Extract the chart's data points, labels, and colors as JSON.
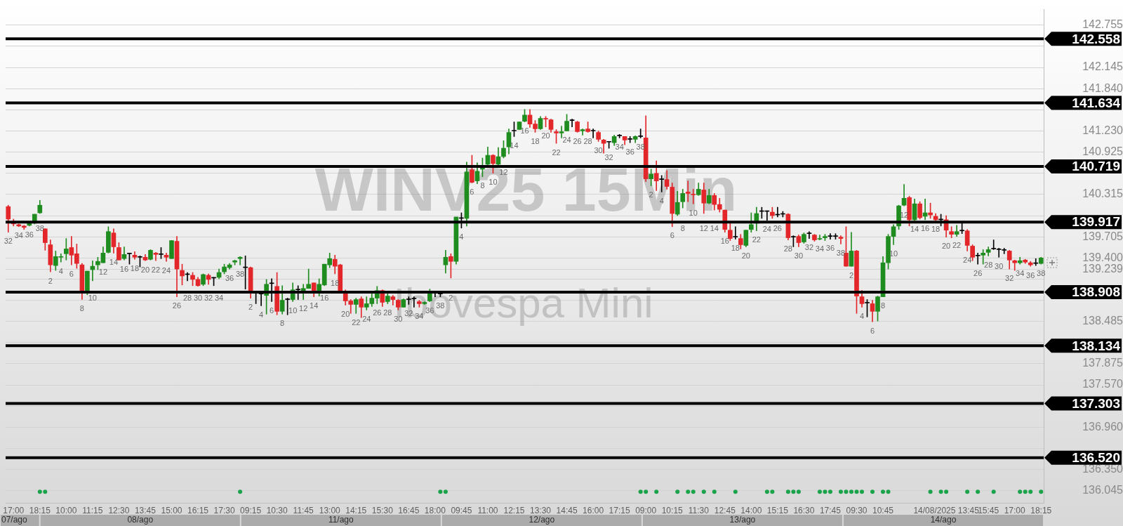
{
  "chart_data": {
    "type": "candlestick",
    "title": "WINV25 15Min",
    "subtitle": "Ibovespa Mini",
    "categories": [
      null,
      "17:00",
      null,
      null,
      null,
      null,
      "18:15",
      null,
      null,
      null,
      null,
      "10:00",
      null,
      null,
      null,
      null,
      "11:15",
      null,
      null,
      null,
      null,
      "12:30",
      null,
      null,
      null,
      null,
      "13:45",
      null,
      null,
      null,
      null,
      "15:00",
      null,
      null,
      null,
      null,
      "16:15",
      null,
      null,
      null,
      null,
      "17:30",
      null,
      null,
      null,
      null,
      "09:15",
      null,
      null,
      null,
      null,
      "10:30",
      null,
      null,
      null,
      null,
      "11:45",
      null,
      null,
      null,
      null,
      "13:00",
      null,
      null,
      null,
      null,
      "14:15",
      null,
      null,
      null,
      null,
      "15:30",
      null,
      null,
      null,
      null,
      "16:45",
      null,
      null,
      null,
      null,
      "18:00",
      null,
      null,
      null,
      null,
      "09:45",
      null,
      null,
      null,
      null,
      "11:00",
      null,
      null,
      null,
      null,
      "12:15",
      null,
      null,
      null,
      null,
      "13:30",
      null,
      null,
      null,
      null,
      "14:45",
      null,
      null,
      null,
      null,
      "16:00",
      null,
      null,
      null,
      null,
      "17:15",
      null,
      null,
      null,
      null,
      "09:00",
      null,
      null,
      null,
      null,
      "10:15",
      null,
      null,
      null,
      null,
      "11:30",
      null,
      null,
      null,
      null,
      "12:45",
      null,
      null,
      null,
      null,
      "14:00",
      null,
      null,
      null,
      null,
      "15:15",
      null,
      null,
      null,
      null,
      "16:30",
      null,
      null,
      null,
      null,
      "17:45",
      null,
      null,
      null,
      null,
      "09:30",
      null,
      null,
      null,
      null,
      "10:45",
      null,
      null,
      null,
      null,
      null,
      null,
      null,
      null,
      null,
      null,
      null,
      "14/08/2025 13:45",
      null,
      null,
      null,
      null,
      null,
      null,
      null,
      "15:45",
      null,
      null,
      null,
      null,
      "17:00",
      null,
      null,
      null,
      null,
      "18:15"
    ],
    "ohlc": [
      [
        140.14,
        140.16,
        139.77,
        139.96
      ],
      [
        139.91,
        139.96,
        139.86,
        139.89
      ],
      [
        139.88,
        139.89,
        139.85,
        139.86
      ],
      [
        139.86,
        139.87,
        139.81,
        139.84
      ],
      [
        139.87,
        139.91,
        139.86,
        139.9
      ],
      [
        139.9,
        140.03,
        139.89,
        140.03
      ],
      [
        140.05,
        140.23,
        140.04,
        140.16
      ],
      [
        139.82,
        139.82,
        139.51,
        139.62
      ],
      [
        139.59,
        139.66,
        139.2,
        139.3
      ],
      [
        139.29,
        139.5,
        139.22,
        139.42
      ],
      [
        139.41,
        139.46,
        139.34,
        139.42
      ],
      [
        139.46,
        139.68,
        139.37,
        139.53
      ],
      [
        139.55,
        139.71,
        139.3,
        139.44
      ],
      [
        139.46,
        139.6,
        139.25,
        139.32
      ],
      [
        139.3,
        139.32,
        138.8,
        138.9
      ],
      [
        138.91,
        139.21,
        138.87,
        139.21
      ],
      [
        139.23,
        139.36,
        139.07,
        139.28
      ],
      [
        139.3,
        139.41,
        139.23,
        139.35
      ],
      [
        139.33,
        139.56,
        139.33,
        139.47
      ],
      [
        139.48,
        139.85,
        139.47,
        139.78
      ],
      [
        139.76,
        139.82,
        139.47,
        139.56
      ],
      [
        139.55,
        139.62,
        139.37,
        139.37
      ],
      [
        139.39,
        139.56,
        139.37,
        139.45
      ],
      [
        139.46,
        139.47,
        139.31,
        139.46
      ],
      [
        139.44,
        139.49,
        139.38,
        139.41
      ],
      [
        139.41,
        139.43,
        139.27,
        139.41
      ],
      [
        139.41,
        139.45,
        139.36,
        139.37
      ],
      [
        139.38,
        139.52,
        139.37,
        139.51
      ],
      [
        139.47,
        139.48,
        139.36,
        139.45
      ],
      [
        139.45,
        139.55,
        139.39,
        139.45
      ],
      [
        139.44,
        139.47,
        139.35,
        139.41
      ],
      [
        139.39,
        139.65,
        139.39,
        139.65
      ],
      [
        139.64,
        139.71,
        138.84,
        139.24
      ],
      [
        139.22,
        139.31,
        139.01,
        139.14
      ],
      [
        139.16,
        139.19,
        139.07,
        139.16
      ],
      [
        139.15,
        139.19,
        139.0,
        139.09
      ],
      [
        139.09,
        139.12,
        138.99,
        139.0
      ],
      [
        139.02,
        139.17,
        139.0,
        139.16
      ],
      [
        139.15,
        139.17,
        139.02,
        139.09
      ],
      [
        139.11,
        139.12,
        139.0,
        139.11
      ],
      [
        139.12,
        139.24,
        139.1,
        139.19
      ],
      [
        139.2,
        139.31,
        139.17,
        139.27
      ],
      [
        139.26,
        139.32,
        139.24,
        139.3
      ],
      [
        139.34,
        139.37,
        139.3,
        139.36
      ],
      [
        139.39,
        139.42,
        139.3,
        139.41
      ],
      [
        139.26,
        139.43,
        138.95,
        139.26
      ],
      [
        139.26,
        139.27,
        138.82,
        138.91
      ],
      [
        138.89,
        138.9,
        138.74,
        138.89
      ],
      [
        138.88,
        138.89,
        138.71,
        138.88
      ],
      [
        138.86,
        139.09,
        138.59,
        139.02
      ],
      [
        139.03,
        139.1,
        138.77,
        139.03
      ],
      [
        138.99,
        139.19,
        138.58,
        138.63
      ],
      [
        138.63,
        139.0,
        138.59,
        138.79
      ],
      [
        138.8,
        138.82,
        138.58,
        138.8
      ],
      [
        138.8,
        139.04,
        138.77,
        138.94
      ],
      [
        138.94,
        139.0,
        138.8,
        138.94
      ],
      [
        138.9,
        139.02,
        138.8,
        138.96
      ],
      [
        138.96,
        139.24,
        138.96,
        139.02
      ],
      [
        139.04,
        139.04,
        138.84,
        138.92
      ],
      [
        138.92,
        139.1,
        138.85,
        139.02
      ],
      [
        139.01,
        139.31,
        139.0,
        139.31
      ],
      [
        139.3,
        139.47,
        139.26,
        139.39
      ],
      [
        139.38,
        139.44,
        139.17,
        139.28
      ],
      [
        139.3,
        139.31,
        138.92,
        138.92
      ],
      [
        138.9,
        138.94,
        138.72,
        138.78
      ],
      [
        138.78,
        138.8,
        138.6,
        138.73
      ],
      [
        138.73,
        138.82,
        138.6,
        138.8
      ],
      [
        138.81,
        138.84,
        138.54,
        138.69
      ],
      [
        138.69,
        138.84,
        138.65,
        138.74
      ],
      [
        138.74,
        138.91,
        138.7,
        138.82
      ],
      [
        138.82,
        138.99,
        138.74,
        138.93
      ],
      [
        138.93,
        138.94,
        138.7,
        138.76
      ],
      [
        138.77,
        138.9,
        138.74,
        138.85
      ],
      [
        138.84,
        138.86,
        138.72,
        138.8
      ],
      [
        138.79,
        138.8,
        138.65,
        138.69
      ],
      [
        138.69,
        138.81,
        138.69,
        138.8
      ],
      [
        138.8,
        138.84,
        138.73,
        138.8
      ],
      [
        138.81,
        138.84,
        138.69,
        138.81
      ],
      [
        138.77,
        138.79,
        138.69,
        138.74
      ],
      [
        138.74,
        138.77,
        138.73,
        138.76
      ],
      [
        138.78,
        138.95,
        138.77,
        138.89
      ],
      [
        138.89,
        138.9,
        138.84,
        138.89
      ],
      [
        138.88,
        138.89,
        138.84,
        138.88
      ],
      [
        139.3,
        139.51,
        139.18,
        139.41
      ],
      [
        139.42,
        139.46,
        139.11,
        139.35
      ],
      [
        139.35,
        139.99,
        139.31,
        139.99
      ],
      [
        139.97,
        140.05,
        139.83,
        139.97
      ],
      [
        139.97,
        140.78,
        139.86,
        140.64
      ],
      [
        140.67,
        140.88,
        140.48,
        140.49
      ],
      [
        140.51,
        140.77,
        140.47,
        140.65
      ],
      [
        140.68,
        140.84,
        140.57,
        140.71
      ],
      [
        140.75,
        141.0,
        140.74,
        140.88
      ],
      [
        140.88,
        140.89,
        140.62,
        140.76
      ],
      [
        140.75,
        140.99,
        140.74,
        140.86
      ],
      [
        140.86,
        141.09,
        140.84,
        140.98
      ],
      [
        141.0,
        141.26,
        140.9,
        141.21
      ],
      [
        141.23,
        141.36,
        141.15,
        141.23
      ],
      [
        141.25,
        141.36,
        141.25,
        141.36
      ],
      [
        141.37,
        141.54,
        141.36,
        141.46
      ],
      [
        141.46,
        141.54,
        141.28,
        141.33
      ],
      [
        141.33,
        141.38,
        141.21,
        141.26
      ],
      [
        141.26,
        141.44,
        141.25,
        141.41
      ],
      [
        141.41,
        141.44,
        141.29,
        141.4
      ],
      [
        141.39,
        141.4,
        141.21,
        141.25
      ],
      [
        141.22,
        141.25,
        141.05,
        141.2
      ],
      [
        141.2,
        141.3,
        141.13,
        141.22
      ],
      [
        141.23,
        141.47,
        141.23,
        141.37
      ],
      [
        141.38,
        141.4,
        141.29,
        141.38
      ],
      [
        141.36,
        141.37,
        141.21,
        141.22
      ],
      [
        141.23,
        141.26,
        141.17,
        141.25
      ],
      [
        141.26,
        141.36,
        141.21,
        141.22
      ],
      [
        141.23,
        141.26,
        141.13,
        141.23
      ],
      [
        141.21,
        141.23,
        141.08,
        141.11
      ],
      [
        141.1,
        141.11,
        140.91,
        141.05
      ],
      [
        141.07,
        141.08,
        140.98,
        141.07
      ],
      [
        141.06,
        141.17,
        141.02,
        141.15
      ],
      [
        141.16,
        141.18,
        141.13,
        141.16
      ],
      [
        141.15,
        141.15,
        141.03,
        141.1
      ],
      [
        141.11,
        141.15,
        141.06,
        141.11
      ],
      [
        141.11,
        141.16,
        141.06,
        141.15
      ],
      [
        141.15,
        141.26,
        141.13,
        141.15
      ],
      [
        141.13,
        141.45,
        140.5,
        140.54
      ],
      [
        140.54,
        140.68,
        140.44,
        140.61
      ],
      [
        140.62,
        140.8,
        140.37,
        140.51
      ],
      [
        140.53,
        140.59,
        140.35,
        140.53
      ],
      [
        140.53,
        140.66,
        140.39,
        140.43
      ],
      [
        140.42,
        140.48,
        139.85,
        140.04
      ],
      [
        140.03,
        140.36,
        140.01,
        140.2
      ],
      [
        140.21,
        140.39,
        140.12,
        140.33
      ],
      [
        140.35,
        140.51,
        140.21,
        140.33
      ],
      [
        140.32,
        140.39,
        140.18,
        140.31
      ],
      [
        140.31,
        140.48,
        140.3,
        140.39
      ],
      [
        140.38,
        140.48,
        140.04,
        140.19
      ],
      [
        140.19,
        140.39,
        140.18,
        140.3
      ],
      [
        140.3,
        140.33,
        140.09,
        140.17
      ],
      [
        140.17,
        140.26,
        140.06,
        140.1
      ],
      [
        140.09,
        140.09,
        139.77,
        139.81
      ],
      [
        139.8,
        139.9,
        139.65,
        139.68
      ],
      [
        139.7,
        139.85,
        139.67,
        139.7
      ],
      [
        139.68,
        139.74,
        139.53,
        139.59
      ],
      [
        139.58,
        139.8,
        139.56,
        139.8
      ],
      [
        139.81,
        140.05,
        139.77,
        139.88
      ],
      [
        139.9,
        140.13,
        139.79,
        140.04
      ],
      [
        140.07,
        140.13,
        139.97,
        140.07
      ],
      [
        140.07,
        140.08,
        139.94,
        140.07
      ],
      [
        140.06,
        140.13,
        139.97,
        140.01
      ],
      [
        140.02,
        140.13,
        139.99,
        140.02
      ],
      [
        140.03,
        140.07,
        139.99,
        140.03
      ],
      [
        140.03,
        140.04,
        139.66,
        139.69
      ],
      [
        139.7,
        139.72,
        139.56,
        139.7
      ],
      [
        139.71,
        139.73,
        139.56,
        139.62
      ],
      [
        139.63,
        139.76,
        139.61,
        139.74
      ],
      [
        139.75,
        139.78,
        139.68,
        139.75
      ],
      [
        139.73,
        139.74,
        139.64,
        139.66
      ],
      [
        139.67,
        139.73,
        139.66,
        139.68
      ],
      [
        139.69,
        139.74,
        139.65,
        139.71
      ],
      [
        139.71,
        139.75,
        139.67,
        139.71
      ],
      [
        139.71,
        139.75,
        139.67,
        139.71
      ],
      [
        139.7,
        139.72,
        139.6,
        139.68
      ],
      [
        139.47,
        139.85,
        139.28,
        139.28
      ],
      [
        139.28,
        139.77,
        139.28,
        139.5
      ],
      [
        139.5,
        139.51,
        138.6,
        138.85
      ],
      [
        138.84,
        138.93,
        138.69,
        138.74
      ],
      [
        138.75,
        138.8,
        138.55,
        138.75
      ],
      [
        138.74,
        138.79,
        138.48,
        138.63
      ],
      [
        138.63,
        138.85,
        138.49,
        138.84
      ],
      [
        138.84,
        139.42,
        138.84,
        139.33
      ],
      [
        139.33,
        139.74,
        139.24,
        139.71
      ],
      [
        139.71,
        139.88,
        139.59,
        139.85
      ],
      [
        139.86,
        140.16,
        139.81,
        140.15
      ],
      [
        140.16,
        140.46,
        140.15,
        140.26
      ],
      [
        140.27,
        140.29,
        139.86,
        139.95
      ],
      [
        139.95,
        140.25,
        139.94,
        140.18
      ],
      [
        140.18,
        140.21,
        139.96,
        139.98
      ],
      [
        140.0,
        140.25,
        139.95,
        140.05
      ],
      [
        140.05,
        140.19,
        139.97,
        140.02
      ],
      [
        140.0,
        140.04,
        139.94,
        139.95
      ],
      [
        139.95,
        140.03,
        139.86,
        139.95
      ],
      [
        139.95,
        140.01,
        139.7,
        139.8
      ],
      [
        139.78,
        139.85,
        139.69,
        139.74
      ],
      [
        139.74,
        139.87,
        139.71,
        139.78
      ],
      [
        139.79,
        139.91,
        139.75,
        139.79
      ],
      [
        139.79,
        139.81,
        139.5,
        139.58
      ],
      [
        139.57,
        139.59,
        139.36,
        139.41
      ],
      [
        139.43,
        139.47,
        139.31,
        139.43
      ],
      [
        139.44,
        139.52,
        139.31,
        139.47
      ],
      [
        139.48,
        139.56,
        139.43,
        139.52
      ],
      [
        139.53,
        139.66,
        139.52,
        139.53
      ],
      [
        139.52,
        139.54,
        139.41,
        139.52
      ],
      [
        139.51,
        139.54,
        139.46,
        139.51
      ],
      [
        139.5,
        139.51,
        139.24,
        139.37
      ],
      [
        139.36,
        139.37,
        139.22,
        139.33
      ],
      [
        139.33,
        139.41,
        139.31,
        139.36
      ],
      [
        139.37,
        139.38,
        139.32,
        139.34
      ],
      [
        139.33,
        139.35,
        139.28,
        139.3
      ],
      [
        139.32,
        139.39,
        139.29,
        139.32
      ],
      [
        139.32,
        139.41,
        139.31,
        139.4
      ]
    ],
    "colors": [
      "#e3262a",
      "#e3262a",
      "#e3262a",
      "#e3262a",
      "#1e8c1e",
      "#1e8c1e",
      "#1e8c1e",
      "#e3262a",
      "#e3262a",
      "#1e8c1e",
      "#1e8c1e",
      "#1e8c1e",
      "#e3262a",
      "#e3262a",
      "#e3262a",
      "#1e8c1e",
      "#1e8c1e",
      "#1e8c1e",
      "#1e8c1e",
      "#1e8c1e",
      "#e3262a",
      "#e3262a",
      "#1e8c1e",
      "#000000",
      "#e3262a",
      "#000000",
      "#e3262a",
      "#1e8c1e",
      "#e3262a",
      "#000000",
      "#e3262a",
      "#1e8c1e",
      "#e3262a",
      "#e3262a",
      "#000000",
      "#e3262a",
      "#e3262a",
      "#1e8c1e",
      "#e3262a",
      "#000000",
      "#1e8c1e",
      "#1e8c1e",
      "#1e8c1e",
      "#1e8c1e",
      "#1e8c1e",
      "#000000",
      "#e3262a",
      "#000000",
      "#000000",
      "#1e8c1e",
      "#000000",
      "#e3262a",
      "#1e8c1e",
      "#000000",
      "#1e8c1e",
      "#000000",
      "#1e8c1e",
      "#1e8c1e",
      "#e3262a",
      "#1e8c1e",
      "#1e8c1e",
      "#1e8c1e",
      "#e3262a",
      "#e3262a",
      "#e3262a",
      "#e3262a",
      "#1e8c1e",
      "#e3262a",
      "#1e8c1e",
      "#1e8c1e",
      "#1e8c1e",
      "#e3262a",
      "#1e8c1e",
      "#e3262a",
      "#e3262a",
      "#1e8c1e",
      "#000000",
      "#000000",
      "#e3262a",
      "#1e8c1e",
      "#1e8c1e",
      "#000000",
      "#000000",
      "#1e8c1e",
      "#e3262a",
      "#1e8c1e",
      "#000000",
      "#1e8c1e",
      "#e3262a",
      "#1e8c1e",
      "#1e8c1e",
      "#1e8c1e",
      "#e3262a",
      "#1e8c1e",
      "#1e8c1e",
      "#1e8c1e",
      "#000000",
      "#1e8c1e",
      "#1e8c1e",
      "#e3262a",
      "#e3262a",
      "#1e8c1e",
      "#e3262a",
      "#e3262a",
      "#e3262a",
      "#1e8c1e",
      "#1e8c1e",
      "#000000",
      "#e3262a",
      "#1e8c1e",
      "#e3262a",
      "#000000",
      "#e3262a",
      "#e3262a",
      "#000000",
      "#1e8c1e",
      "#000000",
      "#e3262a",
      "#000000",
      "#1e8c1e",
      "#000000",
      "#e3262a",
      "#1e8c1e",
      "#e3262a",
      "#000000",
      "#e3262a",
      "#e3262a",
      "#1e8c1e",
      "#1e8c1e",
      "#e3262a",
      "#e3262a",
      "#1e8c1e",
      "#e3262a",
      "#1e8c1e",
      "#e3262a",
      "#e3262a",
      "#e3262a",
      "#e3262a",
      "#000000",
      "#e3262a",
      "#1e8c1e",
      "#1e8c1e",
      "#1e8c1e",
      "#000000",
      "#000000",
      "#e3262a",
      "#000000",
      "#000000",
      "#e3262a",
      "#000000",
      "#e3262a",
      "#1e8c1e",
      "#000000",
      "#e3262a",
      "#1e8c1e",
      "#1e8c1e",
      "#000000",
      "#000000",
      "#e3262a",
      "#e3262a",
      "#1e8c1e",
      "#e3262a",
      "#e3262a",
      "#000000",
      "#e3262a",
      "#1e8c1e",
      "#1e8c1e",
      "#1e8c1e",
      "#1e8c1e",
      "#1e8c1e",
      "#1e8c1e",
      "#e3262a",
      "#1e8c1e",
      "#e3262a",
      "#1e8c1e",
      "#e3262a",
      "#e3262a",
      "#000000",
      "#e3262a",
      "#e3262a",
      "#1e8c1e",
      "#000000",
      "#e3262a",
      "#e3262a",
      "#000000",
      "#1e8c1e",
      "#1e8c1e",
      "#000000",
      "#000000",
      "#000000",
      "#e3262a",
      "#e3262a",
      "#1e8c1e",
      "#e3262a",
      "#e3262a",
      "#000000",
      "#1e8c1e"
    ],
    "value_labels": [
      "32",
      null,
      "34",
      null,
      "36",
      null,
      "38",
      null,
      "2",
      null,
      "4",
      null,
      "6",
      null,
      "8",
      null,
      "10",
      null,
      "12",
      null,
      "14",
      null,
      "16",
      null,
      "18",
      null,
      "20",
      null,
      "22",
      null,
      "24",
      null,
      "26",
      null,
      "28",
      null,
      "30",
      null,
      "32",
      null,
      "34",
      null,
      "36",
      null,
      "38",
      null,
      "2",
      null,
      "4",
      null,
      "6",
      null,
      "8",
      null,
      "10",
      null,
      "12",
      null,
      "14",
      null,
      "16",
      null,
      "18",
      null,
      "20",
      null,
      "22",
      null,
      "24",
      null,
      "26",
      null,
      "28",
      null,
      "30",
      null,
      "32",
      null,
      "34",
      null,
      "36",
      null,
      "38",
      null,
      "2",
      null,
      "4",
      null,
      "6",
      null,
      "8",
      null,
      "10",
      null,
      "12",
      null,
      "14",
      null,
      "16",
      null,
      "18",
      null,
      "20",
      null,
      "22",
      null,
      "24",
      null,
      "26",
      null,
      "28",
      null,
      "30",
      null,
      "32",
      null,
      "34",
      null,
      "36",
      null,
      "38",
      null,
      "2",
      null,
      "4",
      null,
      "6",
      null,
      "8",
      null,
      "10",
      null,
      "12",
      null,
      "14",
      null,
      "16",
      null,
      "18",
      null,
      "20",
      null,
      "22",
      null,
      "24",
      null,
      "26",
      null,
      "28",
      null,
      "30",
      null,
      "32",
      null,
      "34",
      null,
      "36",
      null,
      "38",
      null,
      "2",
      null,
      "4",
      null,
      "6",
      null,
      "8",
      null,
      "10",
      null,
      "12",
      null,
      "14",
      null,
      "16",
      null,
      "18",
      null,
      "20",
      null,
      "22",
      null,
      "24",
      null,
      "26",
      null,
      "28",
      null,
      "30",
      null,
      "32",
      null,
      "34",
      null,
      "36",
      null,
      "38"
    ],
    "series": [
      {
        "type": "scatter",
        "color": "#1aa34a",
        "values": [
          null,
          null,
          null,
          null,
          null,
          null,
          136.03,
          136.03,
          null,
          null,
          null,
          null,
          null,
          null,
          null,
          null,
          null,
          null,
          null,
          null,
          null,
          null,
          null,
          null,
          null,
          null,
          null,
          null,
          null,
          null,
          null,
          null,
          null,
          null,
          null,
          null,
          null,
          null,
          null,
          null,
          null,
          null,
          null,
          null,
          136.03,
          null,
          null,
          null,
          null,
          null,
          null,
          null,
          null,
          null,
          null,
          null,
          null,
          null,
          null,
          null,
          null,
          null,
          null,
          null,
          null,
          null,
          null,
          null,
          null,
          null,
          null,
          null,
          null,
          null,
          null,
          null,
          null,
          null,
          null,
          null,
          null,
          null,
          136.03,
          136.03,
          null,
          null,
          null,
          null,
          null,
          null,
          null,
          null,
          null,
          null,
          null,
          null,
          null,
          null,
          null,
          null,
          null,
          null,
          null,
          null,
          null,
          null,
          null,
          null,
          null,
          null,
          null,
          null,
          null,
          null,
          null,
          null,
          null,
          null,
          null,
          null,
          136.03,
          136.03,
          null,
          136.03,
          null,
          null,
          null,
          136.03,
          null,
          136.03,
          136.03,
          null,
          136.03,
          null,
          136.03,
          null,
          null,
          null,
          136.03,
          null,
          null,
          null,
          null,
          null,
          136.03,
          136.03,
          null,
          null,
          136.03,
          136.03,
          136.03,
          null,
          null,
          null,
          136.03,
          136.03,
          136.03,
          null,
          136.03,
          136.03,
          136.03,
          136.03,
          136.03,
          null,
          136.03,
          null,
          136.03,
          136.03,
          null,
          null,
          null,
          null,
          null,
          null,
          null,
          136.03,
          null,
          136.03,
          136.03,
          null,
          null,
          null,
          136.03,
          null,
          136.03,
          null,
          null,
          136.03,
          null,
          null,
          null,
          null,
          136.03,
          136.03,
          136.03,
          null,
          136.03
        ]
      }
    ],
    "marker": "circle",
    "ylim": [
      135.87,
      142.98
    ],
    "yticks": [
      136.045,
      {
        "value": 136.35,
        "label": "136.350"
      },
      {
        "value": 136.655,
        "label": null
      },
      {
        "value": 136.96,
        "label": "136.960"
      },
      {
        "value": 137.265,
        "label": null
      },
      {
        "value": 137.57,
        "label": "137.570"
      },
      137.875,
      {
        "value": 138.18,
        "label": null
      },
      138.485,
      {
        "value": 138.79,
        "label": null
      },
      {
        "value": 139.095,
        "label": null
      },
      {
        "value": 139.239,
        "label": "139.239"
      },
      {
        "value": 139.4,
        "label": "139.400"
      },
      139.705,
      {
        "value": 140.01,
        "label": null
      },
      140.315,
      {
        "value": 140.62,
        "label": null
      },
      140.925,
      {
        "value": 141.23,
        "label": "141.230"
      },
      {
        "value": 141.535,
        "label": null
      },
      {
        "value": 141.84,
        "label": "141.840"
      },
      142.145,
      {
        "value": 142.45,
        "label": null
      },
      142.755
    ],
    "grid": "y",
    "ref_lines": [
      {
        "axis": "y",
        "value": 142.558,
        "label": "142.558",
        "color": "#000000"
      },
      {
        "axis": "y",
        "value": 141.634,
        "label": "141.634",
        "color": "#000000"
      },
      {
        "axis": "y",
        "value": 140.719,
        "label": "140.719",
        "color": "#000000"
      },
      {
        "axis": "y",
        "value": 139.917,
        "label": "139.917",
        "color": "#000000"
      },
      {
        "axis": "y",
        "value": 138.908,
        "label": "138.908",
        "color": "#000000"
      },
      {
        "axis": "y",
        "value": 138.134,
        "label": "138.134",
        "color": "#000000"
      },
      {
        "axis": "y",
        "value": 137.303,
        "label": "137.303",
        "color": "#000000"
      },
      {
        "axis": "y",
        "value": 136.52,
        "label": "136.520",
        "color": "#000000"
      }
    ],
    "annotations": [
      "07/ago",
      "08/ago",
      "11/ago",
      "12/ago",
      "13/ago",
      "14/ago"
    ]
  }
}
